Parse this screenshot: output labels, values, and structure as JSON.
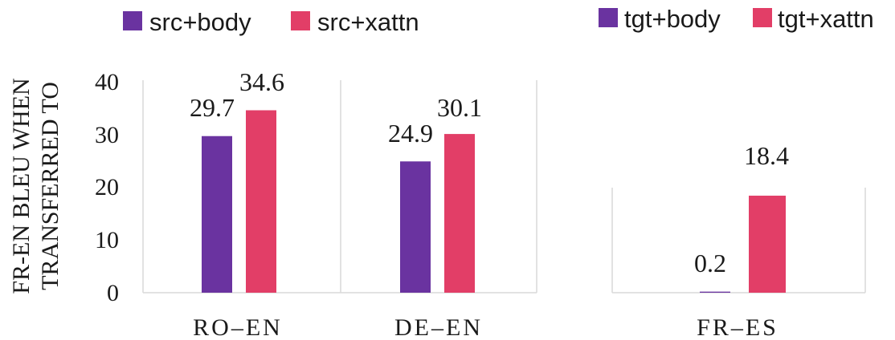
{
  "chart_data": {
    "type": "bar",
    "ylabel_lines": [
      "FR-EN BLEU WHEN",
      "TRANSFERRED TO"
    ],
    "ylim": [
      0,
      40
    ],
    "yticks": [
      "0",
      "10",
      "20",
      "30",
      "40"
    ],
    "grid": false,
    "panels": [
      {
        "legend_position": "top-left",
        "categories": [
          "RO–EN",
          "DE–EN"
        ],
        "series": [
          {
            "name": "src+body",
            "color": "#6a33a0",
            "values": [
              29.7,
              24.9
            ],
            "labels": [
              "29.7",
              "24.9"
            ]
          },
          {
            "name": "src+xattn",
            "color": "#e23e67",
            "values": [
              34.6,
              30.1
            ],
            "labels": [
              "34.6",
              "30.1"
            ]
          }
        ]
      },
      {
        "legend_position": "top-right",
        "categories": [
          "FR–ES"
        ],
        "series": [
          {
            "name": "tgt+body",
            "color": "#6a33a0",
            "values": [
              0.2
            ],
            "labels": [
              "0.2"
            ]
          },
          {
            "name": "tgt+xattn",
            "color": "#e23e67",
            "values": [
              18.4
            ],
            "labels": [
              "18.4"
            ]
          }
        ]
      }
    ]
  }
}
